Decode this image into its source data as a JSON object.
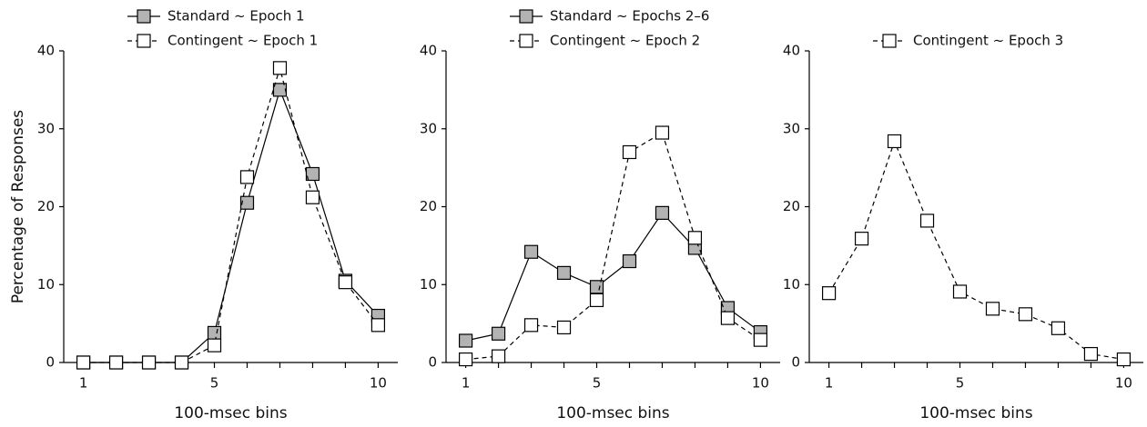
{
  "chart_data": [
    {
      "type": "line",
      "xlabel": "100-msec bins",
      "ylabel": "Percentage of Responses",
      "x": [
        1,
        2,
        3,
        4,
        5,
        6,
        7,
        8,
        9,
        10
      ],
      "xlim": [
        0.4,
        10.6
      ],
      "ylim": [
        0,
        40
      ],
      "xticks": [
        1,
        5,
        10
      ],
      "xminorticks": [
        2,
        3,
        4,
        6,
        7,
        8,
        9
      ],
      "yticks": [
        0,
        10,
        20,
        30,
        40
      ],
      "legend": "top",
      "series": [
        {
          "name": "Standard ~ Epoch 1",
          "color": "#000000",
          "marker_fill": "#b3b3b3",
          "line_style": "solid",
          "values": [
            0,
            0,
            0,
            0,
            3.8,
            20.5,
            35,
            24.2,
            10.5,
            6
          ]
        },
        {
          "name": "Contingent ~ Epoch 1",
          "color": "#000000",
          "marker_fill": "#ffffff",
          "line_style": "dashed",
          "values": [
            0,
            0,
            0,
            0,
            2.2,
            23.8,
            37.8,
            21.2,
            10.3,
            4.8
          ]
        }
      ]
    },
    {
      "type": "line",
      "xlabel": "100-msec bins",
      "x": [
        1,
        2,
        3,
        4,
        5,
        6,
        7,
        8,
        9,
        10
      ],
      "xlim": [
        0.4,
        10.6
      ],
      "ylim": [
        0,
        40
      ],
      "xticks": [
        1,
        5,
        10
      ],
      "xminorticks": [
        2,
        3,
        4,
        6,
        7,
        8,
        9
      ],
      "yticks": [
        0,
        10,
        20,
        30,
        40
      ],
      "legend": "top",
      "series": [
        {
          "name": "Standard ~ Epochs 2–6",
          "color": "#000000",
          "marker_fill": "#b3b3b3",
          "line_style": "solid",
          "values": [
            2.8,
            3.7,
            14.2,
            11.5,
            9.7,
            13,
            19.2,
            14.7,
            7,
            3.9
          ]
        },
        {
          "name": "Contingent ~ Epoch 2",
          "color": "#000000",
          "marker_fill": "#ffffff",
          "line_style": "dashed",
          "values": [
            0.4,
            0.8,
            4.8,
            4.5,
            8,
            27,
            29.5,
            16,
            5.7,
            2.9
          ]
        }
      ]
    },
    {
      "type": "line",
      "xlabel": "100-msec bins",
      "x": [
        1,
        2,
        3,
        4,
        5,
        6,
        7,
        8,
        9,
        10
      ],
      "xlim": [
        0.4,
        10.6
      ],
      "ylim": [
        0,
        40
      ],
      "xticks": [
        1,
        5,
        10
      ],
      "xminorticks": [
        2,
        3,
        4,
        6,
        7,
        8,
        9
      ],
      "yticks": [
        0,
        10,
        20,
        30,
        40
      ],
      "legend": "top",
      "series": [
        {
          "name": "Contingent ~ Epoch 3",
          "color": "#000000",
          "marker_fill": "#ffffff",
          "line_style": "dashed",
          "values": [
            8.9,
            15.9,
            28.4,
            18.2,
            9.1,
            6.9,
            6.2,
            4.4,
            1.1,
            0.4
          ]
        }
      ]
    }
  ]
}
